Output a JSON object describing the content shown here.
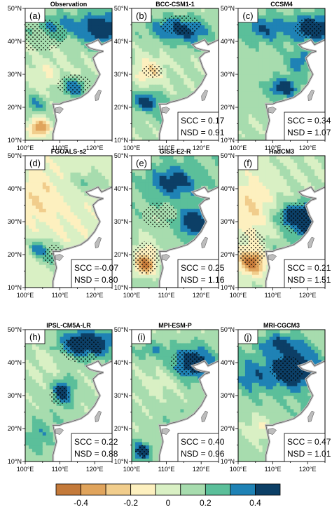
{
  "chart_data": {
    "type": "heatmap",
    "lon_ticks": [
      "100°E",
      "110°E",
      "120°E"
    ],
    "lat_ticks": [
      "10°N",
      "20°N",
      "30°N",
      "40°N",
      "50°N"
    ],
    "panels": [
      {
        "label": "(a)",
        "title": "Observation",
        "scc": "",
        "nsd": "",
        "pattern": "obs"
      },
      {
        "label": "(b)",
        "title": "BCC-CSM1-1",
        "scc": "SCC = 0.17",
        "nsd": "NSD = 0.91",
        "pattern": "bcc"
      },
      {
        "label": "(c)",
        "title": "CCSM4",
        "scc": "SCC = 0.34",
        "nsd": "NSD = 1.07",
        "pattern": "ccsm"
      },
      {
        "label": "(d)",
        "title": "FGOALS-s2",
        "scc": "SCC =-0.07",
        "nsd": "NSD = 0.80",
        "pattern": "fgoals"
      },
      {
        "label": "(e)",
        "title": "GISS-E2-R",
        "scc": "SCC = 0.25",
        "nsd": "NSD = 1.16",
        "pattern": "giss"
      },
      {
        "label": "(f)",
        "title": "HadCM3",
        "scc": "SCC = 0.21",
        "nsd": "NSD = 1.51",
        "pattern": "had"
      },
      {
        "label": "(h)",
        "title": "IPSL-CM5A-LR",
        "scc": "SCC = 0.22",
        "nsd": "NSD = 0.88",
        "pattern": "ipsl"
      },
      {
        "label": "(i)",
        "title": "MPI-ESM-P",
        "scc": "SCC = 0.40",
        "nsd": "NSD = 0.96",
        "pattern": "mpi"
      },
      {
        "label": "(j)",
        "title": "MRI-CGCM3",
        "scc": "SCC = 0.47",
        "nsd": "NSD = 1.01",
        "pattern": "mri"
      }
    ],
    "colorbar": {
      "labels": [
        "-0.4",
        "-0.2",
        "0",
        "0.2",
        "0.4"
      ],
      "colors": [
        "#c47a3a",
        "#e0a45c",
        "#f1cd8c",
        "#fdf0bf",
        "#d9f0c4",
        "#a7dcae",
        "#5bbf9a",
        "#1f82b5",
        "#0c3f66"
      ]
    }
  }
}
